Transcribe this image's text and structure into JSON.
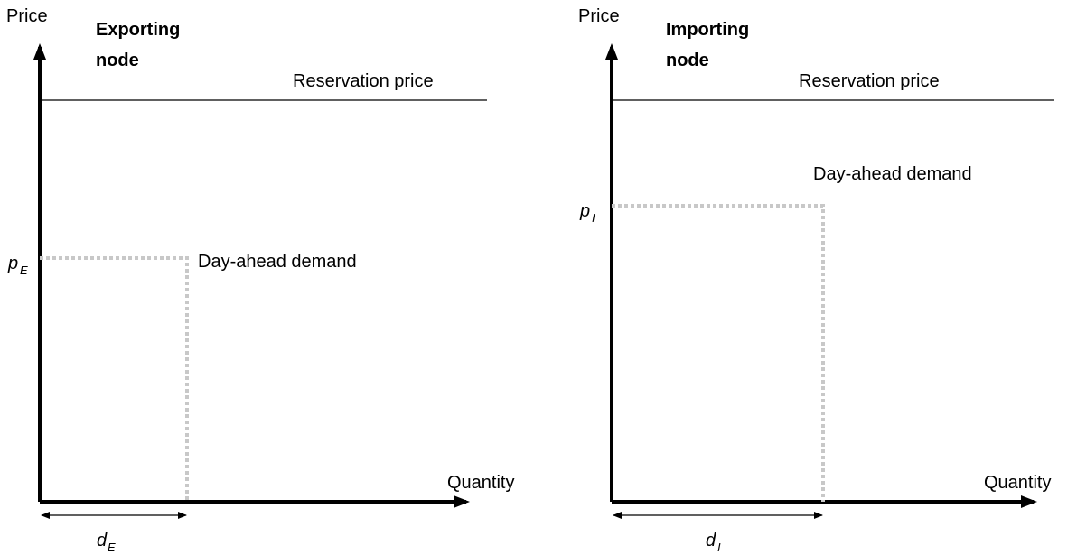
{
  "panels": [
    {
      "title_line1": "Exporting",
      "title_line2": "node",
      "y_axis_label": "Price",
      "x_axis_label": "Quantity",
      "reservation_label": "Reservation price",
      "demand_label": "Day-ahead demand",
      "price_symbol": "p",
      "price_subscript": "E",
      "quantity_symbol": "d",
      "quantity_subscript": "E"
    },
    {
      "title_line1": "Importing",
      "title_line2": "node",
      "y_axis_label": "Price",
      "x_axis_label": "Quantity",
      "reservation_label": "Reservation price",
      "demand_label": "Day-ahead demand",
      "price_symbol": "p",
      "price_subscript": "I",
      "quantity_symbol": "d",
      "quantity_subscript": "I"
    }
  ],
  "colors": {
    "axis": "#000000",
    "dotted_guide": "#c8c8c8"
  }
}
